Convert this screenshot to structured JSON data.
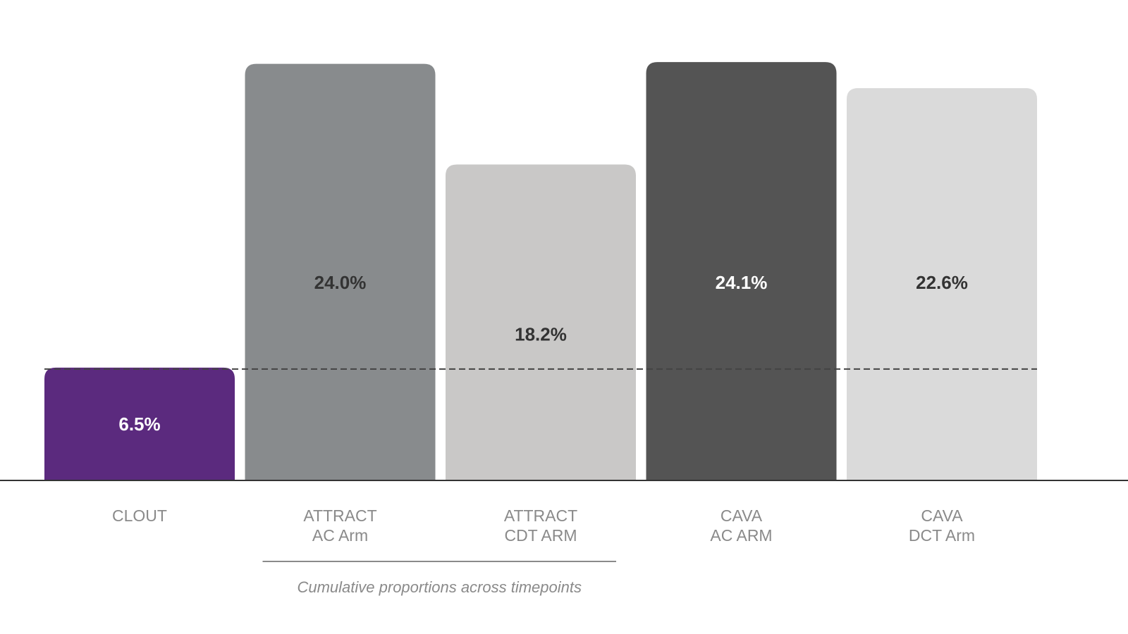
{
  "chart_data": {
    "type": "bar",
    "categories": [
      [
        "CLOUT"
      ],
      [
        "ATTRACT",
        "AC Arm"
      ],
      [
        "ATTRACT",
        "CDT ARM"
      ],
      [
        "CAVA",
        "AC ARM"
      ],
      [
        "CAVA",
        "DCT Arm"
      ]
    ],
    "values": [
      6.5,
      24.0,
      18.2,
      24.1,
      22.6
    ],
    "value_labels": [
      "6.5%",
      "24.0%",
      "18.2%",
      "24.1%",
      "22.6%"
    ],
    "bar_colors": [
      "#5b2a7e",
      "#888b8d",
      "#c9c8c7",
      "#545454",
      "#dadada"
    ],
    "value_label_colors": [
      "#ffffff",
      "#333333",
      "#333333",
      "#ffffff",
      "#333333"
    ],
    "reference_line": 6.5,
    "ylim": [
      0,
      25
    ],
    "grid": false,
    "bracket": {
      "spans_categories": [
        1,
        2
      ],
      "label": "Cumulative proportions across timepoints"
    }
  }
}
